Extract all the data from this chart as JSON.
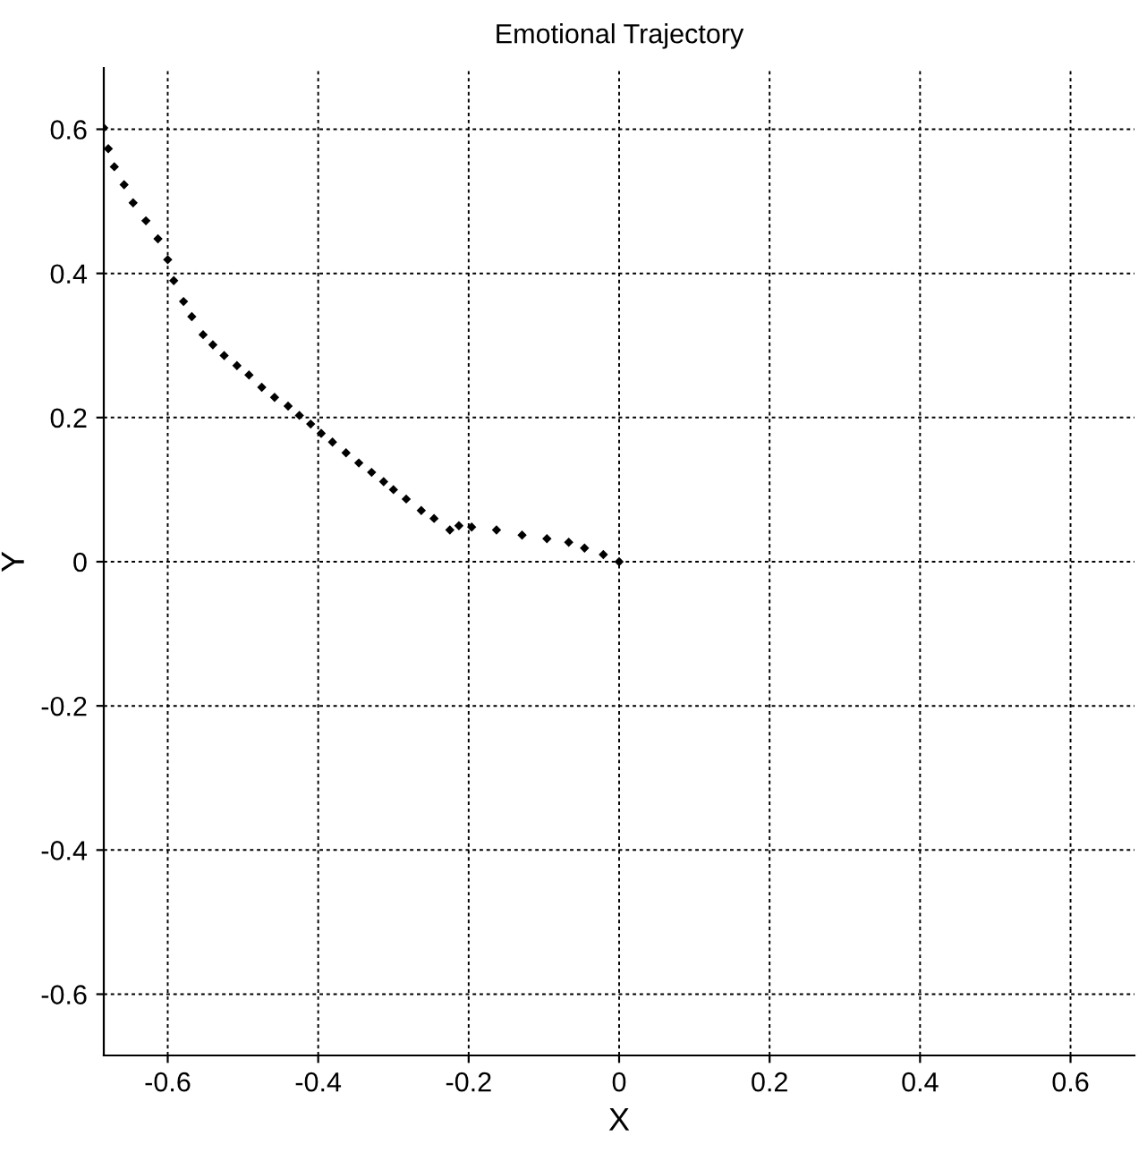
{
  "chart_data": {
    "type": "scatter",
    "title": "Emotional Trajectory",
    "xlabel": "X",
    "ylabel": "Y",
    "x": [
      -0.685,
      -0.679,
      -0.671,
      -0.658,
      -0.646,
      -0.629,
      -0.613,
      -0.6,
      -0.592,
      -0.579,
      -0.568,
      -0.553,
      -0.54,
      -0.525,
      -0.508,
      -0.492,
      -0.475,
      -0.458,
      -0.44,
      -0.425,
      -0.41,
      -0.396,
      -0.381,
      -0.363,
      -0.346,
      -0.329,
      -0.313,
      -0.3,
      -0.283,
      -0.263,
      -0.246,
      -0.225,
      -0.213,
      -0.196,
      -0.163,
      -0.129,
      -0.096,
      -0.067,
      -0.046,
      -0.021,
      0
    ],
    "series": [
      {
        "color": "#000000",
        "values": [
          0.602,
          0.573,
          0.548,
          0.523,
          0.498,
          0.473,
          0.448,
          0.419,
          0.39,
          0.361,
          0.34,
          0.315,
          0.301,
          0.286,
          0.272,
          0.259,
          0.242,
          0.228,
          0.216,
          0.203,
          0.191,
          0.178,
          0.166,
          0.151,
          0.137,
          0.124,
          0.111,
          0.1,
          0.087,
          0.071,
          0.06,
          0.044,
          0.05,
          0.048,
          0.044,
          0.037,
          0.032,
          0.027,
          0.019,
          0.01,
          0
        ]
      }
    ],
    "xlim": [
      -0.685,
      0.685
    ],
    "ylim": [
      -0.685,
      0.685
    ],
    "xticks": [
      -0.6,
      -0.4,
      -0.2,
      0,
      0.2,
      0.4,
      0.6
    ],
    "yticks": [
      -0.6,
      -0.4,
      -0.2,
      0,
      0.2,
      0.4,
      0.6
    ],
    "grid": true,
    "marker": "diamond"
  }
}
